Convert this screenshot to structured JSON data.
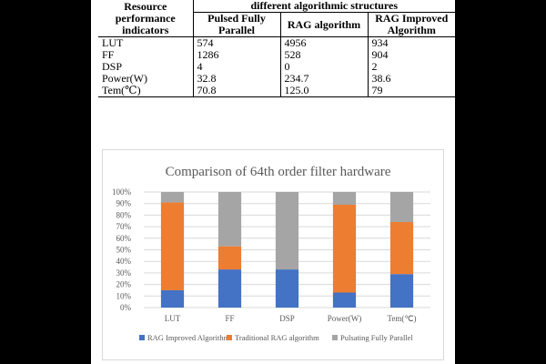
{
  "table": {
    "corner_header": "Resource performance indicators",
    "group_header": "different algorithmic structures",
    "columns": [
      "Pulsed Fully Parallel",
      "RAG algorithm",
      "RAG Improved Algorithm"
    ],
    "rows": [
      {
        "label": "LUT",
        "values": [
          "574",
          "4956",
          "934"
        ]
      },
      {
        "label": "FF",
        "values": [
          "1286",
          "528",
          "904"
        ]
      },
      {
        "label": "DSP",
        "values": [
          "4",
          "0",
          "2"
        ]
      },
      {
        "label": "Power(W)",
        "values": [
          "32.8",
          "234.7",
          "38.6"
        ]
      },
      {
        "label": "Tem(℃)",
        "values": [
          "70.8",
          "125.0",
          "79"
        ]
      }
    ]
  },
  "chart_data": {
    "type": "bar",
    "stacked": "percent",
    "title": "Comparison of 64th order filter hardware",
    "categories": [
      "LUT",
      "FF",
      "DSP",
      "Power(W)",
      "Tem(℃)"
    ],
    "yticks": [
      "0%",
      "10%",
      "20%",
      "30%",
      "40%",
      "50%",
      "60%",
      "70%",
      "80%",
      "90%",
      "100%"
    ],
    "ylim": [
      0,
      100
    ],
    "grid": true,
    "legend_position": "bottom",
    "series": [
      {
        "name": "RAG Improved Algorithm",
        "color": "#4472c4",
        "values": [
          15,
          33,
          33,
          13,
          29
        ]
      },
      {
        "name": "Traditional RAG algorithm",
        "color": "#ed7d31",
        "values": [
          76,
          20,
          0,
          76,
          45
        ]
      },
      {
        "name": "Pulsating Fully Parallel",
        "color": "#a5a5a5",
        "values": [
          9,
          47,
          67,
          11,
          26
        ]
      }
    ]
  }
}
